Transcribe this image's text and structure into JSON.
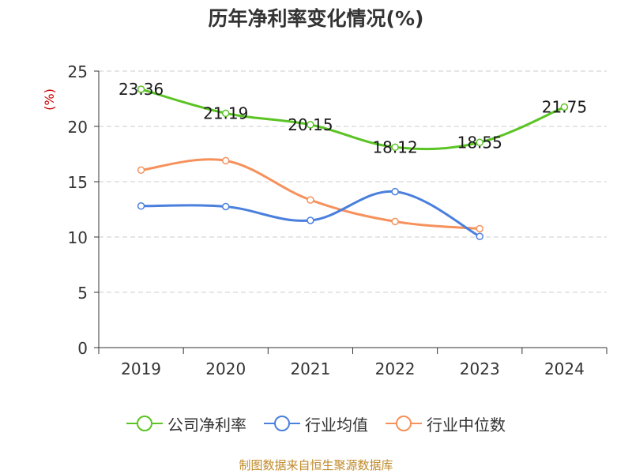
{
  "chart_data": {
    "type": "line",
    "title": "历年净利率变化情况(%)",
    "ylabel": "(%)",
    "xlabel": "",
    "categories": [
      "2019",
      "2020",
      "2021",
      "2022",
      "2023",
      "2024"
    ],
    "ylim": [
      0,
      25
    ],
    "yticks": [
      0,
      5,
      10,
      15,
      20,
      25
    ],
    "grid": "horizontal-dashed",
    "legend_position": "bottom",
    "series": [
      {
        "name": "公司净利率",
        "color": "#5bc424",
        "values": [
          23.36,
          21.19,
          20.15,
          18.12,
          18.55,
          21.75
        ],
        "labels": [
          "23.36",
          "21.19",
          "20.15",
          "18.12",
          "18.55",
          "21.75"
        ]
      },
      {
        "name": "行业均值",
        "color": "#4a7fdd",
        "values": [
          12.8,
          12.75,
          11.5,
          14.1,
          10.05,
          null
        ]
      },
      {
        "name": "行业中位数",
        "color": "#f6915c",
        "values": [
          16.05,
          16.9,
          13.35,
          11.4,
          10.75,
          null
        ]
      }
    ]
  },
  "source_text": "制图数据来自恒生聚源数据库"
}
